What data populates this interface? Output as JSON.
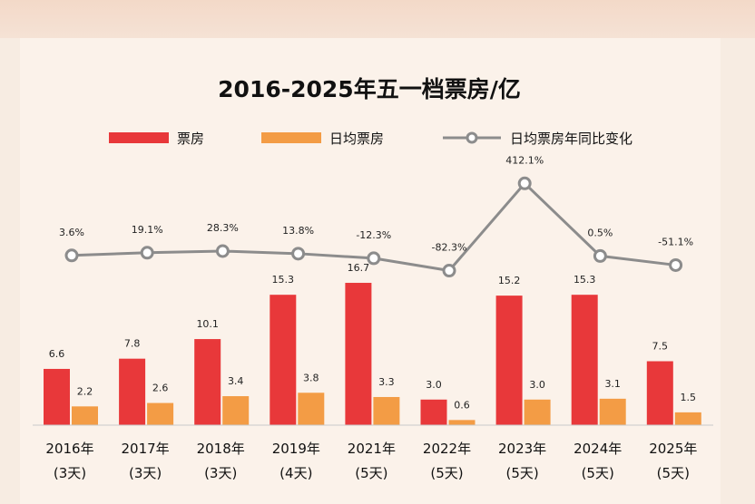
{
  "chart_data": {
    "type": "bar",
    "title": "2016-2025年五一档票房/亿",
    "categories": [
      "2016年",
      "2017年",
      "2018年",
      "2019年",
      "2021年",
      "2022年",
      "2023年",
      "2024年",
      "2025年"
    ],
    "sublabels": [
      "(3天)",
      "(3天)",
      "(3天)",
      "(4天)",
      "(5天)",
      "(5天)",
      "(5天)",
      "(5天)",
      "(5天)"
    ],
    "series": [
      {
        "name": "票房",
        "values": [
          6.6,
          7.8,
          10.1,
          15.3,
          16.7,
          3.0,
          15.2,
          15.3,
          7.5
        ],
        "labels": [
          "6.6",
          "7.8",
          "10.1",
          "15.3",
          "16.7",
          "3.0",
          "15.2",
          "15.3",
          "7.5"
        ],
        "color": "#e8383a"
      },
      {
        "name": "日均票房",
        "values": [
          2.2,
          2.6,
          3.4,
          3.8,
          3.3,
          0.6,
          3.0,
          3.1,
          1.5
        ],
        "labels": [
          "2.2",
          "2.6",
          "3.4",
          "3.8",
          "3.3",
          "0.6",
          "3.0",
          "3.1",
          "1.5"
        ],
        "color": "#f39c45"
      },
      {
        "name": "日均票房年同比变化",
        "values": [
          3.6,
          19.1,
          28.3,
          13.8,
          -12.3,
          -82.3,
          412.1,
          0.5,
          -51.1
        ],
        "labels": [
          "3.6%",
          "19.1%",
          "28.3%",
          "13.8%",
          "-12.3%",
          "-82.3%",
          "412.1%",
          "0.5%",
          "-51.1%"
        ],
        "color": "#8c8c8c",
        "type": "line"
      }
    ],
    "legend": "top",
    "grid": false
  }
}
